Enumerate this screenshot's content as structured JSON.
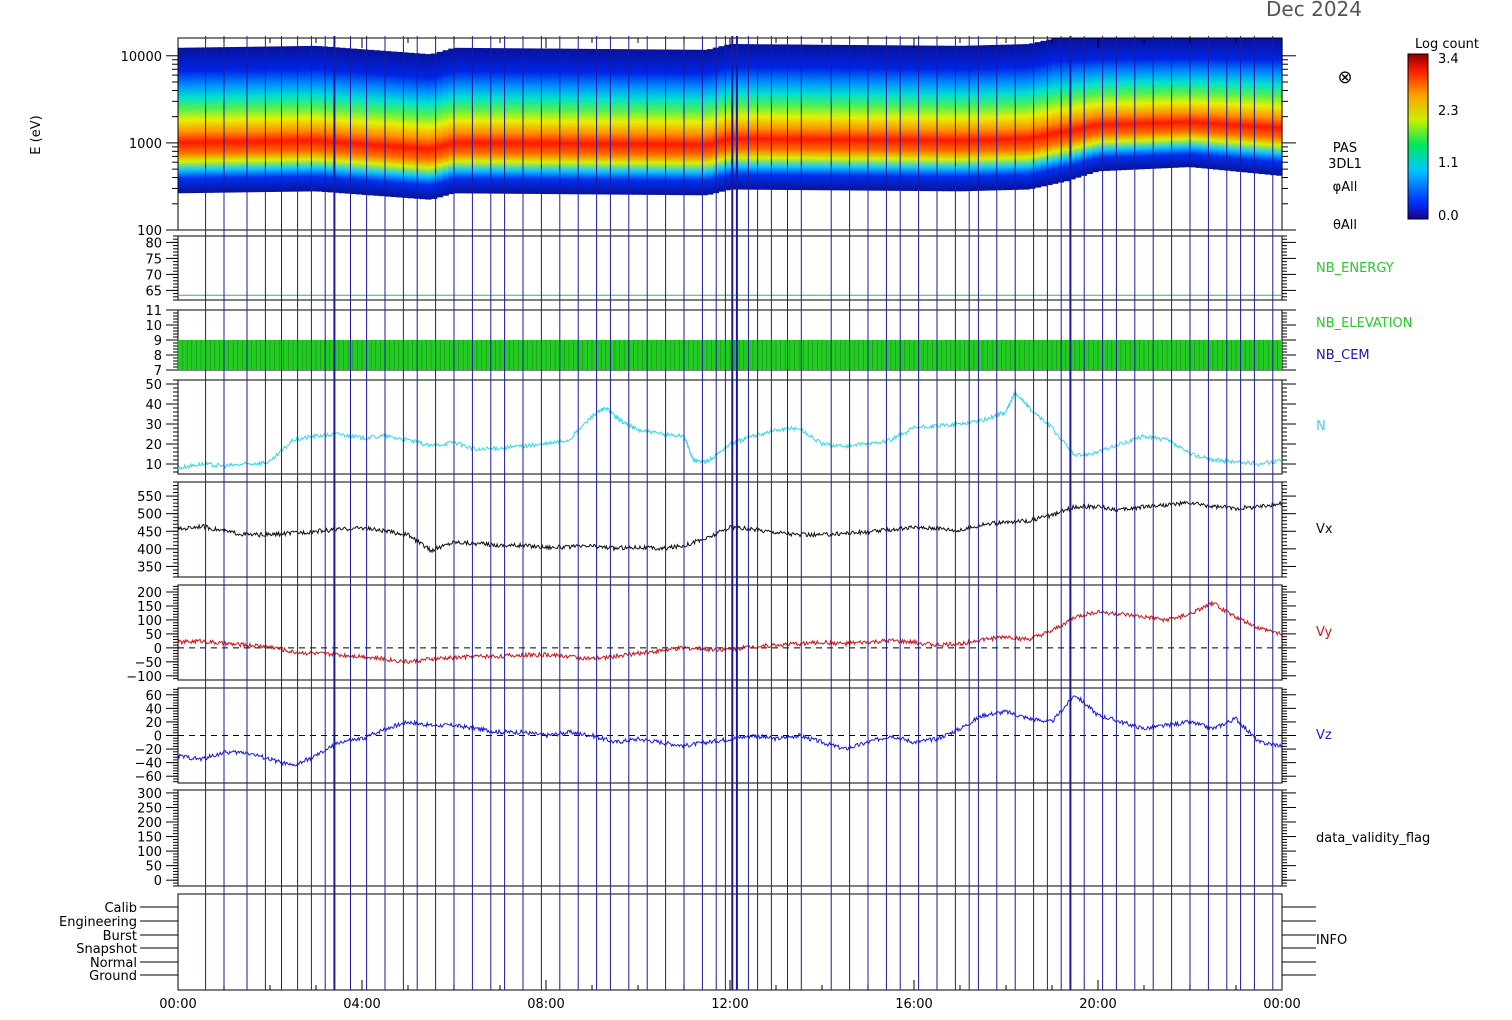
{
  "header": {
    "date_label": "Dec 2024"
  },
  "colors": {
    "frame": "#000000",
    "marker": "#1a1aa0",
    "nb_label": "#22cc22",
    "cem_label": "#1a1aa0",
    "density": "#38d6e8",
    "vx": "#111111",
    "vy": "#d01515",
    "vz": "#1a1ad8"
  },
  "chart_data": [
    {
      "type": "heatmap",
      "id": "spectrogram",
      "ylabel": "E (eV)",
      "yscale": "log",
      "ylim": [
        100,
        16000
      ],
      "yticks": [
        100,
        1000,
        10000
      ],
      "ytick_labels": [
        "100",
        "1000",
        "10000"
      ],
      "side_labels": [
        "PAS",
        "3DL1",
        "φAll",
        "θAll"
      ],
      "symbol": "⊗",
      "colorbar": {
        "title": "Log count",
        "range": [
          0.0,
          3.4
        ],
        "tick_labels": [
          "3.4",
          "2.3",
          "1.1",
          "0.0"
        ]
      },
      "peak_energy_eV": [
        [
          0,
          950
        ],
        [
          3,
          1000
        ],
        [
          5.5,
          800
        ],
        [
          6,
          950
        ],
        [
          11.5,
          900
        ],
        [
          12,
          1050
        ],
        [
          17,
          1000
        ],
        [
          18.5,
          1050
        ],
        [
          19.3,
          1300
        ],
        [
          20,
          1700
        ],
        [
          22,
          1900
        ],
        [
          24,
          1500
        ]
      ]
    },
    {
      "type": "line",
      "id": "nb_energy",
      "name": "NB_ENERGY",
      "ylim": [
        62,
        82
      ],
      "yticks": [
        65,
        70,
        75,
        80
      ],
      "ytick_labels": [
        "65",
        "70",
        "75",
        "80"
      ],
      "y_constant": 63.5
    },
    {
      "type": "bar",
      "id": "nb_elevation",
      "names": [
        "NB_ELEVATION",
        "NB_CEM"
      ],
      "ylim": [
        7,
        11
      ],
      "yticks": [
        7,
        8,
        9,
        10,
        11
      ],
      "ytick_labels": [
        "7",
        "8",
        "9",
        "10",
        "11"
      ],
      "band": [
        7,
        9
      ]
    },
    {
      "type": "line",
      "id": "density",
      "name": "N",
      "ylim": [
        5,
        52
      ],
      "yticks": [
        10,
        20,
        30,
        40,
        50
      ],
      "ytick_labels": [
        "10",
        "20",
        "30",
        "40",
        "50"
      ],
      "x": [
        0,
        0.5,
        1,
        1.5,
        2,
        2.5,
        3,
        3.5,
        4,
        4.5,
        5,
        5.5,
        6,
        6.5,
        7,
        7.5,
        8,
        8.5,
        9,
        9.3,
        9.6,
        10,
        10.5,
        11,
        11.2,
        11.5,
        12,
        12.5,
        13,
        13.5,
        14,
        14.5,
        15,
        15.5,
        16,
        16.5,
        17,
        17.5,
        18,
        18.2,
        18.5,
        19,
        19.5,
        20,
        20.5,
        21,
        21.5,
        22,
        22.5,
        23,
        23.5,
        24
      ],
      "y": [
        8,
        10,
        9,
        10,
        11,
        22,
        24,
        25,
        23,
        24,
        22,
        19,
        21,
        17,
        18,
        19,
        20,
        22,
        34,
        38,
        32,
        27,
        25,
        24,
        12,
        11,
        20,
        24,
        27,
        28,
        20,
        19,
        20,
        22,
        28,
        29,
        30,
        32,
        36,
        46,
        38,
        28,
        14,
        16,
        20,
        24,
        22,
        15,
        12,
        11,
        10,
        12
      ]
    },
    {
      "type": "line",
      "id": "vx",
      "name": "Vx",
      "ylim": [
        320,
        590
      ],
      "yticks": [
        350,
        400,
        450,
        500,
        550
      ],
      "ytick_labels": [
        "350",
        "400",
        "450",
        "500",
        "550"
      ],
      "x": [
        0,
        0.5,
        1,
        1.5,
        2,
        2.5,
        3,
        3.5,
        4,
        4.5,
        5,
        5.5,
        6,
        6.5,
        7,
        7.5,
        8,
        8.5,
        9,
        9.5,
        10,
        10.5,
        11,
        11.5,
        12,
        12.5,
        13,
        13.5,
        14,
        14.5,
        15,
        15.5,
        16,
        16.5,
        17,
        17.5,
        18,
        18.5,
        19,
        19.5,
        20,
        20.5,
        21,
        21.5,
        22,
        22.5,
        23,
        23.5,
        24
      ],
      "y": [
        455,
        465,
        450,
        440,
        440,
        445,
        450,
        455,
        460,
        450,
        440,
        395,
        420,
        415,
        410,
        410,
        405,
        405,
        408,
        402,
        405,
        400,
        410,
        430,
        462,
        455,
        448,
        440,
        440,
        445,
        448,
        455,
        460,
        460,
        452,
        470,
        475,
        480,
        495,
        520,
        520,
        510,
        520,
        525,
        530,
        520,
        515,
        520,
        530
      ]
    },
    {
      "type": "line",
      "id": "vy",
      "name": "Vy",
      "ylim": [
        -115,
        225
      ],
      "yticks": [
        -100,
        -50,
        0,
        50,
        100,
        150,
        200
      ],
      "ytick_labels": [
        "−100",
        "−50",
        "0",
        "50",
        "100",
        "150",
        "200"
      ],
      "reference_line": 0,
      "x": [
        0,
        0.5,
        1,
        1.5,
        2,
        2.5,
        3,
        3.5,
        4,
        4.5,
        5,
        5.5,
        6,
        6.5,
        7,
        7.5,
        8,
        8.5,
        9,
        9.5,
        10,
        10.5,
        11,
        11.5,
        12,
        12.5,
        13,
        13.5,
        14,
        14.5,
        15,
        15.5,
        16,
        16.5,
        17,
        17.5,
        18,
        18.5,
        19,
        19.5,
        20,
        20.5,
        21,
        21.5,
        22,
        22.5,
        23,
        23.5,
        24
      ],
      "y": [
        20,
        25,
        15,
        10,
        5,
        -15,
        -20,
        -25,
        -30,
        -40,
        -50,
        -40,
        -35,
        -30,
        -30,
        -25,
        -25,
        -30,
        -40,
        -30,
        -20,
        -10,
        0,
        -5,
        -5,
        5,
        10,
        15,
        20,
        15,
        20,
        25,
        20,
        10,
        15,
        30,
        40,
        30,
        60,
        110,
        130,
        120,
        110,
        100,
        120,
        160,
        110,
        70,
        50
      ]
    },
    {
      "type": "line",
      "id": "vz",
      "name": "Vz",
      "ylim": [
        -70,
        70
      ],
      "yticks": [
        -60,
        -40,
        -20,
        0,
        20,
        40,
        60
      ],
      "ytick_labels": [
        "−60",
        "−40",
        "−20",
        "0",
        "20",
        "40",
        "60"
      ],
      "reference_line": 0,
      "x": [
        0,
        0.5,
        1,
        1.5,
        2,
        2.5,
        3,
        3.5,
        4,
        4.5,
        5,
        5.5,
        6,
        6.5,
        7,
        7.5,
        8,
        8.5,
        9,
        9.5,
        10,
        10.5,
        11,
        11.5,
        12,
        12.5,
        13,
        13.5,
        14,
        14.5,
        15,
        15.5,
        16,
        16.5,
        17,
        17.5,
        18,
        18.5,
        19,
        19.5,
        20,
        20.5,
        21,
        21.5,
        22,
        22.5,
        23,
        23.5,
        24
      ],
      "y": [
        -30,
        -35,
        -25,
        -25,
        -35,
        -45,
        -30,
        -10,
        -5,
        10,
        20,
        15,
        15,
        10,
        5,
        5,
        0,
        5,
        0,
        -10,
        -5,
        -10,
        -15,
        -10,
        -5,
        0,
        -5,
        0,
        -10,
        -20,
        -10,
        0,
        -10,
        -5,
        10,
        30,
        35,
        25,
        20,
        60,
        30,
        20,
        10,
        15,
        20,
        10,
        25,
        -10,
        -15
      ]
    },
    {
      "type": "line",
      "id": "validity",
      "name": "data_validity_flag",
      "ylim": [
        -20,
        310
      ],
      "yticks": [
        0,
        50,
        100,
        150,
        200,
        250,
        300
      ],
      "ytick_labels": [
        "0",
        "50",
        "100",
        "150",
        "200",
        "250",
        "300"
      ]
    },
    {
      "type": "table",
      "id": "info",
      "name": "INFO",
      "levels": [
        "Calib",
        "Engineering",
        "Burst",
        "Snapshot",
        "Normal",
        "Ground"
      ]
    }
  ],
  "x_axis": {
    "range_hours": [
      0,
      24
    ],
    "ticks": [
      0,
      4,
      8,
      12,
      16,
      20,
      24
    ],
    "tick_labels": [
      "00:00",
      "04:00",
      "08:00",
      "12:00",
      "16:00",
      "20:00",
      "00:00"
    ]
  },
  "markers": {
    "thin_hours": [
      0.6,
      1.0,
      1.5,
      1.9,
      2.25,
      2.6,
      2.9,
      3.2,
      3.75,
      4.1,
      4.5,
      4.9,
      5.2,
      5.6,
      6.0,
      6.4,
      6.8,
      7.1,
      7.5,
      7.9,
      8.3,
      8.7,
      9.1,
      9.4,
      9.8,
      10.2,
      10.6,
      11.0,
      11.4,
      11.7,
      11.9,
      12.4,
      12.6,
      12.9,
      13.25,
      13.55,
      14.2,
      14.6,
      15.0,
      15.4,
      15.7,
      16.1,
      16.5,
      16.9,
      17.2,
      17.4,
      17.8,
      18.2,
      18.6,
      18.9,
      19.2,
      19.7,
      20.1,
      20.4,
      20.8,
      21.2,
      21.6,
      22.0,
      22.4,
      22.8,
      23.1,
      23.4,
      23.8
    ],
    "thick_hours": [
      3.4,
      12.05,
      12.15,
      19.4
    ]
  }
}
